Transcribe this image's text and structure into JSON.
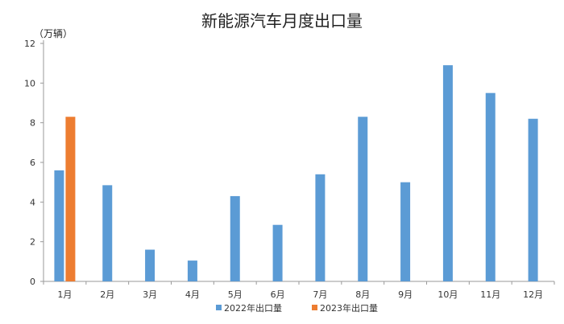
{
  "chart_data": {
    "type": "bar",
    "title": "新能源汽车月度出口量",
    "unit_label": "（万辆）",
    "categories": [
      "1月",
      "2月",
      "3月",
      "4月",
      "5月",
      "6月",
      "7月",
      "8月",
      "9月",
      "10月",
      "11月",
      "12月"
    ],
    "series": [
      {
        "name": "2022年出口量",
        "color": "#5B9BD5",
        "values": [
          5.6,
          4.85,
          1.6,
          1.05,
          4.3,
          2.85,
          5.4,
          8.3,
          5.0,
          10.9,
          9.5,
          8.2
        ]
      },
      {
        "name": "2023年出口量",
        "color": "#ED7D31",
        "values": [
          8.3,
          null,
          null,
          null,
          null,
          null,
          null,
          null,
          null,
          null,
          null,
          null
        ]
      }
    ],
    "ylim": [
      0,
      12
    ],
    "yticks": [
      0,
      2,
      4,
      6,
      8,
      10,
      12
    ],
    "grid": false,
    "legend_position": "bottom"
  }
}
